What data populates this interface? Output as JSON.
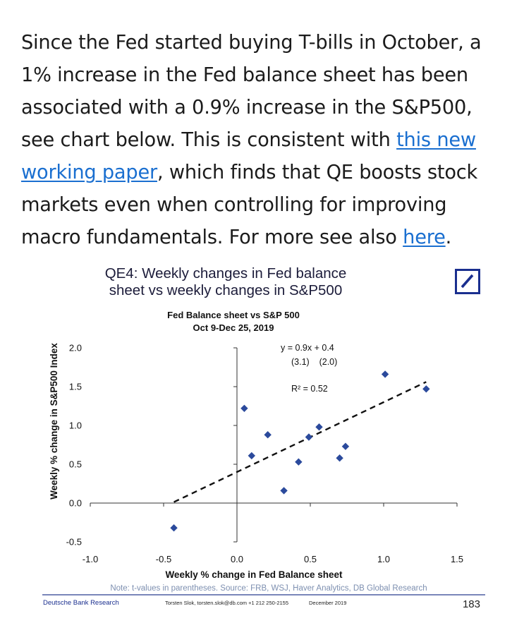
{
  "paragraph": {
    "text1": "Since the Fed started buying T-bills in October, a 1% increase in the Fed balance sheet has been associated with a 0.9% increase in the S&P500, see chart below. This is consistent with ",
    "link1": "this new working paper",
    "text2": ", which finds that QE boosts stock markets even when controlling for improving macro fundamentals. For more see also ",
    "link2": "here",
    "text3": "."
  },
  "chart_title": {
    "line1": "QE4: Weekly changes in Fed balance",
    "line2": "sheet vs weekly changes in S&P500"
  },
  "chart_data": {
    "type": "scatter",
    "title": "Fed Balance sheet vs S&P 500",
    "subtitle": "Oct 9-Dec 25, 2019",
    "xlabel": "Weekly % change in Fed Balance sheet",
    "ylabel": "Weekly % change in S&P500 Index",
    "xlim": [
      -1.0,
      1.5
    ],
    "ylim": [
      -0.5,
      2.0
    ],
    "xticks": [
      "-1.0",
      "-0.5",
      "0.0",
      "0.5",
      "1.0",
      "1.5"
    ],
    "xtick_values": [
      -1.0,
      -0.5,
      0.0,
      0.5,
      1.0,
      1.5
    ],
    "yticks": [
      "2.0",
      "1.5",
      "1.0",
      "0.5",
      "0.0",
      "-0.5"
    ],
    "ytick_values": [
      2.0,
      1.5,
      1.0,
      0.5,
      0.0,
      -0.5
    ],
    "points": [
      {
        "x": -0.43,
        "y": -0.32
      },
      {
        "x": 0.05,
        "y": 1.22
      },
      {
        "x": 0.1,
        "y": 0.61
      },
      {
        "x": 0.21,
        "y": 0.88
      },
      {
        "x": 0.32,
        "y": 0.16
      },
      {
        "x": 0.42,
        "y": 0.53
      },
      {
        "x": 0.49,
        "y": 0.85
      },
      {
        "x": 0.56,
        "y": 0.98
      },
      {
        "x": 0.7,
        "y": 0.58
      },
      {
        "x": 0.74,
        "y": 0.73
      },
      {
        "x": 1.01,
        "y": 1.66
      },
      {
        "x": 1.29,
        "y": 1.47
      }
    ],
    "trendline": {
      "x_start": -0.43,
      "x_end": 1.29,
      "slope": 0.9,
      "intercept": 0.4
    },
    "annotations": {
      "equation": "y = 0.9x + 0.4",
      "tvalues": "(3.1)    (2.0)",
      "r2": "R² = 0.52"
    },
    "marker_color": "#2b4a9c"
  },
  "footer": {
    "note": "Note: t-values in parentheses. Source: FRB, WSJ, Haver Analytics, DB Global Research",
    "source_left": "Deutsche Bank Research",
    "author": "Torsten Slok, torsten.slok@db.com +1 212 250-2155",
    "date": "December 2019",
    "page_number": "183"
  },
  "colors": {
    "link": "#1a6fd0",
    "logo": "#1a2f8f",
    "note": "#7d8fb0",
    "footer_rule": "#2b3f8f"
  },
  "logo_icon": "deutsche-bank-logo-icon"
}
